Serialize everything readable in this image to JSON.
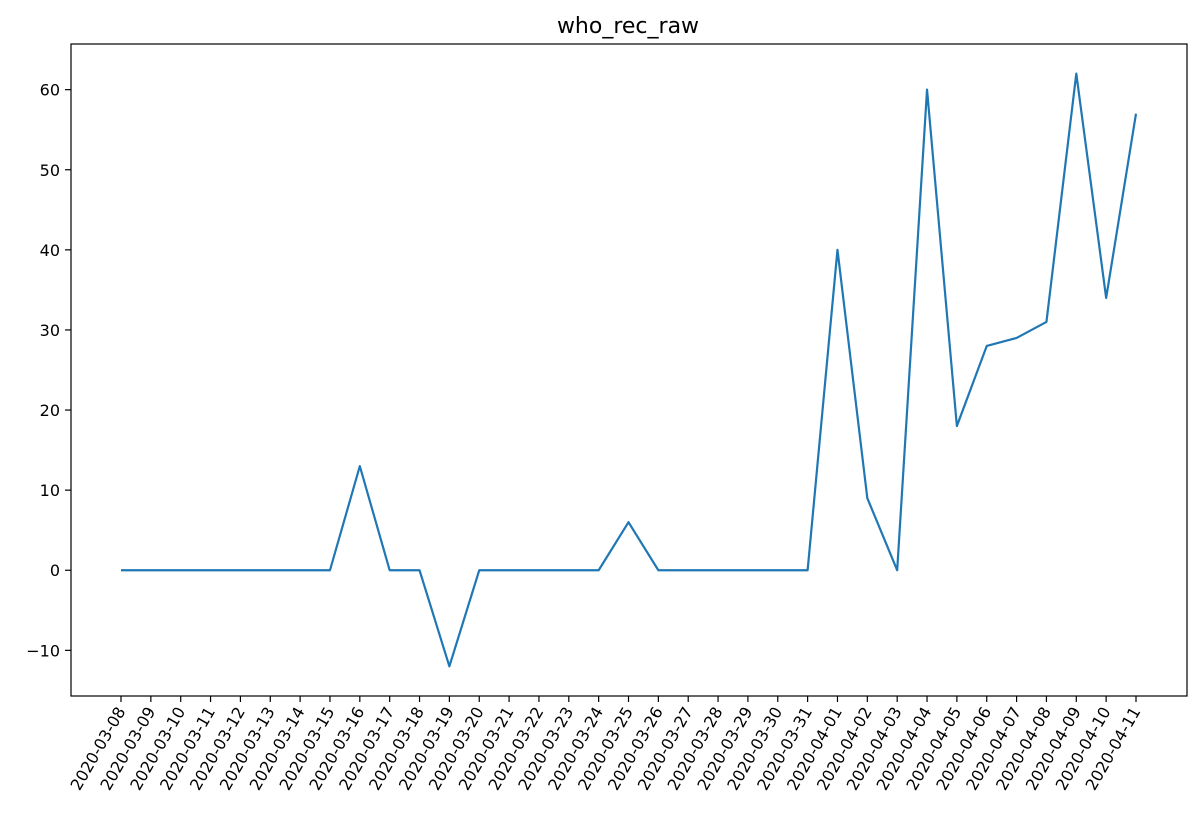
{
  "chart_data": {
    "type": "line",
    "title": "who_rec_raw",
    "xlabel": "",
    "ylabel": "",
    "x": [
      "2020-03-08",
      "2020-03-09",
      "2020-03-10",
      "2020-03-11",
      "2020-03-12",
      "2020-03-13",
      "2020-03-14",
      "2020-03-15",
      "2020-03-16",
      "2020-03-17",
      "2020-03-18",
      "2020-03-19",
      "2020-03-20",
      "2020-03-21",
      "2020-03-22",
      "2020-03-23",
      "2020-03-24",
      "2020-03-25",
      "2020-03-26",
      "2020-03-27",
      "2020-03-28",
      "2020-03-29",
      "2020-03-30",
      "2020-03-31",
      "2020-04-01",
      "2020-04-02",
      "2020-04-03",
      "2020-04-04",
      "2020-04-05",
      "2020-04-06",
      "2020-04-07",
      "2020-04-08",
      "2020-04-09",
      "2020-04-10",
      "2020-04-11"
    ],
    "series": [
      {
        "values": [
          0,
          0,
          0,
          0,
          0,
          0,
          0,
          0,
          13,
          0,
          0,
          -12,
          0,
          0,
          0,
          0,
          0,
          6,
          0,
          0,
          0,
          0,
          0,
          0,
          40,
          9,
          0,
          60,
          18,
          28,
          29,
          31,
          62,
          34,
          57
        ],
        "color": "#1f77b4"
      }
    ],
    "yticks": [
      -10,
      0,
      10,
      20,
      30,
      40,
      50,
      60
    ],
    "ylim": [
      -15.7,
      65.7
    ],
    "grid": false,
    "legend": "none"
  }
}
